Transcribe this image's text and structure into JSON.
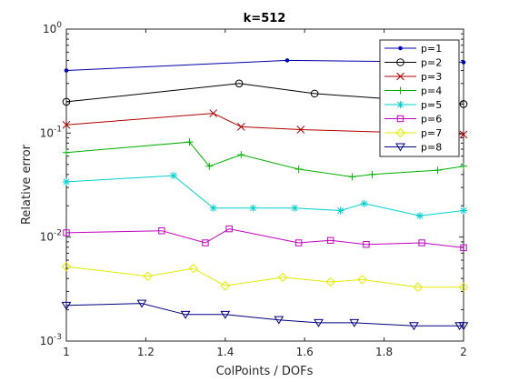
{
  "chart_data": {
    "type": "line",
    "title": "k=512",
    "xlabel": "ColPoints / DOFs",
    "ylabel": "Relative error",
    "xlim": [
      1,
      2
    ],
    "ylim": [
      0.001,
      1
    ],
    "yscale": "log",
    "grid": false,
    "legend_position": "top-right",
    "xticks": [
      {
        "value": 1,
        "label": "1"
      },
      {
        "value": 1.2,
        "label": "1.2"
      },
      {
        "value": 1.4,
        "label": "1.4"
      },
      {
        "value": 1.6,
        "label": "1.6"
      },
      {
        "value": 1.8,
        "label": "1.8"
      },
      {
        "value": 2,
        "label": "2"
      }
    ],
    "yticks": [
      {
        "value": 0.001,
        "base": "10",
        "exp": "-3"
      },
      {
        "value": 0.01,
        "base": "10",
        "exp": "-2"
      },
      {
        "value": 0.1,
        "base": "10",
        "exp": "-1"
      },
      {
        "value": 1,
        "base": "10",
        "exp": "0"
      }
    ],
    "series": [
      {
        "name": "p=1",
        "color": "#0000ad",
        "marker": "dot",
        "x": [
          1,
          1.556,
          2
        ],
        "y": [
          0.4,
          0.5,
          0.48
        ]
      },
      {
        "name": "p=2",
        "color": "#000000",
        "marker": "circle",
        "x": [
          1,
          1.435,
          1.625,
          2
        ],
        "y": [
          0.2,
          0.3,
          0.24,
          0.19
        ]
      },
      {
        "name": "p=3",
        "color": "#b00000",
        "marker": "x",
        "x": [
          1,
          1.37,
          1.44,
          1.59,
          2
        ],
        "y": [
          0.12,
          0.155,
          0.115,
          0.108,
          0.097
        ]
      },
      {
        "name": "p=4",
        "color": "#00b000",
        "marker": "plus",
        "x": [
          1,
          1.31,
          1.36,
          1.44,
          1.585,
          1.72,
          1.77,
          1.935,
          2
        ],
        "y": [
          0.065,
          0.082,
          0.048,
          0.062,
          0.045,
          0.038,
          0.04,
          0.044,
          0.048
        ]
      },
      {
        "name": "p=5",
        "color": "#00d0d0",
        "marker": "star",
        "x": [
          1,
          1.27,
          1.37,
          1.47,
          1.575,
          1.69,
          1.75,
          1.89,
          2
        ],
        "y": [
          0.034,
          0.039,
          0.019,
          0.019,
          0.019,
          0.018,
          0.021,
          0.016,
          0.018
        ]
      },
      {
        "name": "p=6",
        "color": "#c000c0",
        "marker": "square",
        "x": [
          1,
          1.24,
          1.35,
          1.41,
          1.585,
          1.665,
          1.755,
          1.895,
          2
        ],
        "y": [
          0.011,
          0.0115,
          0.0088,
          0.012,
          0.0088,
          0.0093,
          0.0085,
          0.0088,
          0.0079
        ]
      },
      {
        "name": "p=7",
        "color": "#e8e800",
        "marker": "diamond",
        "x": [
          1,
          1.205,
          1.32,
          1.4,
          1.545,
          1.665,
          1.745,
          1.885,
          2
        ],
        "y": [
          0.0052,
          0.0042,
          0.005,
          0.0034,
          0.0041,
          0.0037,
          0.0039,
          0.0033,
          0.0033
        ]
      },
      {
        "name": "p=8",
        "color": "#000080",
        "marker": "triangle-down",
        "x": [
          1,
          1.19,
          1.3,
          1.4,
          1.535,
          1.635,
          1.725,
          1.875,
          1.99,
          2
        ],
        "y": [
          0.0022,
          0.0023,
          0.0018,
          0.0018,
          0.0016,
          0.0015,
          0.0015,
          0.0014,
          0.0014,
          0.0014
        ]
      }
    ]
  }
}
